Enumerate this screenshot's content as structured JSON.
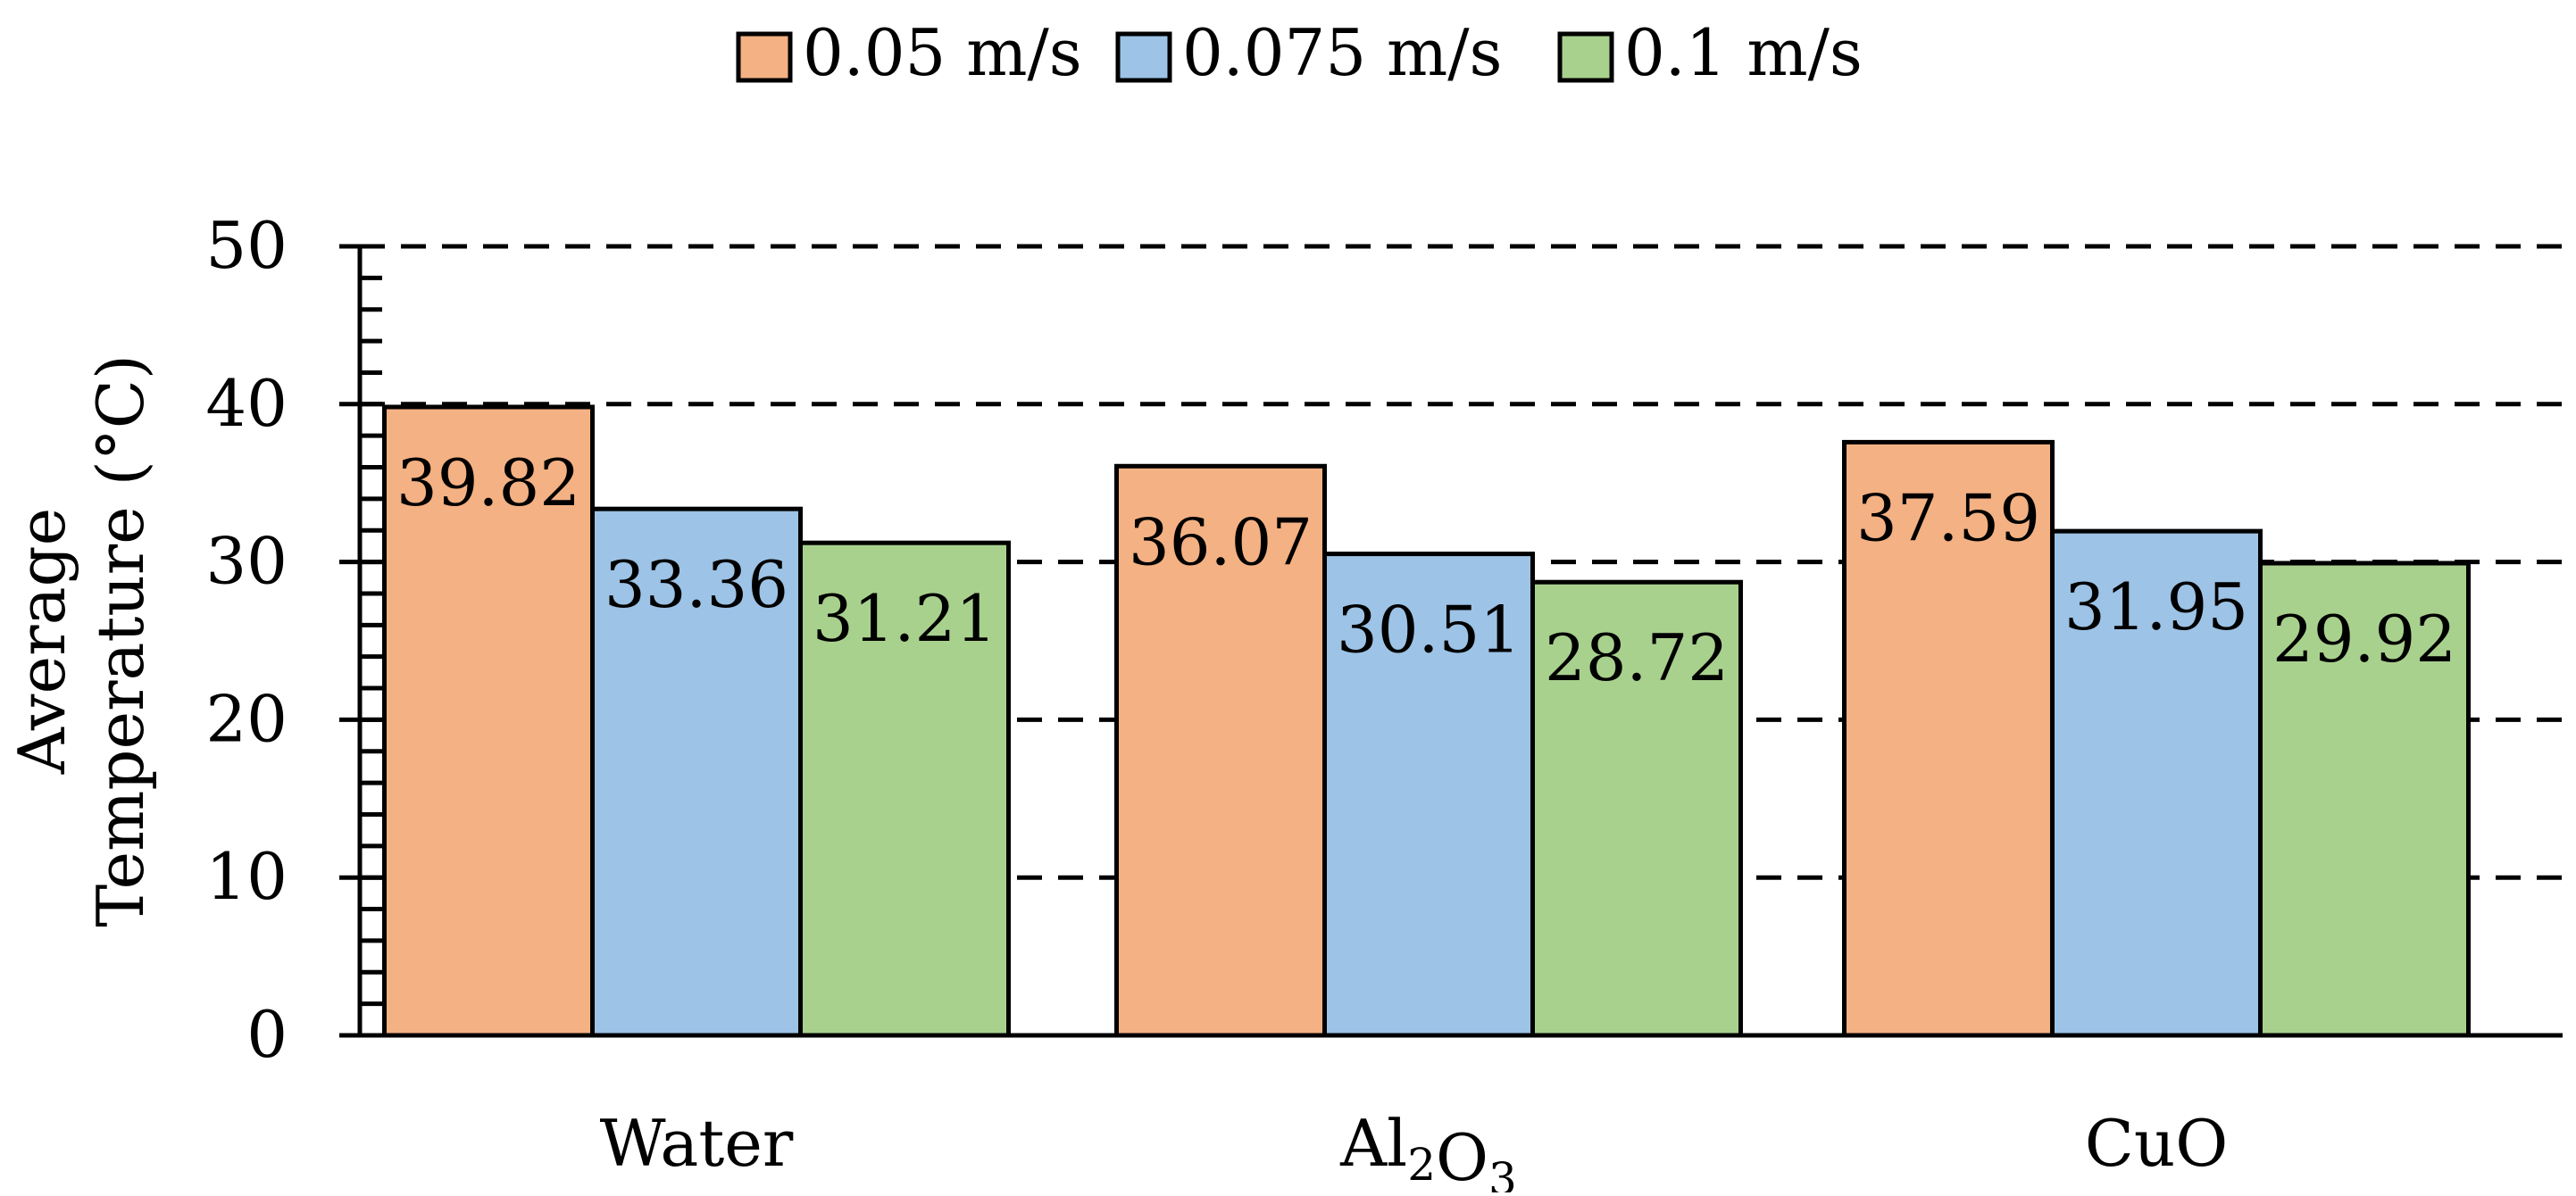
{
  "chart_data": {
    "type": "bar",
    "title": "",
    "categories": [
      {
        "label": "Water",
        "sub": []
      },
      {
        "label": "Al",
        "sub": [
          {
            "base": "Al",
            "sub": "2"
          },
          {
            "base": "O",
            "sub": "3"
          }
        ]
      },
      {
        "label": "CuO",
        "sub": []
      }
    ],
    "category_text": [
      "Water",
      "Al2O3",
      "CuO"
    ],
    "series": [
      {
        "name": "0.05 m/s",
        "color": "#F4B183",
        "values": [
          39.82,
          36.07,
          37.59
        ]
      },
      {
        "name": "0.075 m/s",
        "color": "#9DC3E6",
        "values": [
          33.36,
          30.51,
          31.95
        ]
      },
      {
        "name": "0.1 m/s",
        "color": "#A9D18E",
        "values": [
          31.21,
          28.72,
          29.92
        ]
      }
    ],
    "data_labels": [
      [
        "39.82",
        "36.07",
        "37.59"
      ],
      [
        "33.36",
        "30.51",
        "31.95"
      ],
      [
        "31.21",
        "28.72",
        "29.92"
      ]
    ],
    "xlabel": "",
    "ylabel_lines": [
      "Average",
      "Temperature (°C)"
    ],
    "ylim": [
      0,
      50
    ],
    "yticks": [
      "0",
      "10",
      "20",
      "30",
      "40",
      "50"
    ],
    "grid": "dashed-major",
    "legend": "top-center"
  }
}
